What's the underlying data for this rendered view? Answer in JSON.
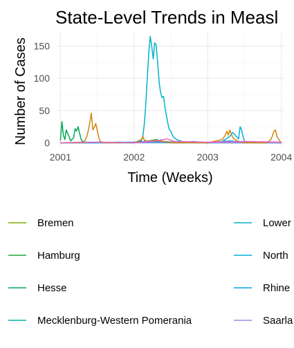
{
  "chart_data": {
    "type": "line",
    "title": "State-Level Trends in Measl",
    "xlabel": "Time (Weeks)",
    "ylabel": "Number of Cases",
    "x_ticks": [
      "2001",
      "2002",
      "2003",
      "2004"
    ],
    "y_ticks": [
      0,
      50,
      100,
      150
    ],
    "xlim": [
      2000.95,
      2004.05
    ],
    "ylim": [
      -6,
      172
    ],
    "grid": true,
    "legend_position": "bottom",
    "series": [
      {
        "name": "Bremen",
        "color": "#7cae00",
        "points": [
          [
            2001.0,
            0
          ],
          [
            2001.5,
            0
          ],
          [
            2002.0,
            1
          ],
          [
            2002.2,
            2
          ],
          [
            2002.4,
            1
          ],
          [
            2003.0,
            0
          ],
          [
            2003.5,
            1
          ],
          [
            2004.0,
            0
          ]
        ]
      },
      {
        "name": "Hamburg",
        "color": "#1fa830",
        "points": [
          [
            2001.0,
            0
          ],
          [
            2001.3,
            1
          ],
          [
            2002.0,
            0
          ],
          [
            2002.2,
            3
          ],
          [
            2002.3,
            5
          ],
          [
            2002.4,
            2
          ],
          [
            2002.6,
            0
          ],
          [
            2003.5,
            1
          ],
          [
            2004.0,
            0
          ]
        ]
      },
      {
        "name": "Hesse",
        "color": "#00a858",
        "points": [
          [
            2001.0,
            3
          ],
          [
            2001.02,
            33
          ],
          [
            2001.04,
            12
          ],
          [
            2001.06,
            5
          ],
          [
            2001.08,
            20
          ],
          [
            2001.1,
            14
          ],
          [
            2001.12,
            9
          ],
          [
            2001.14,
            3
          ],
          [
            2001.18,
            8
          ],
          [
            2001.2,
            22
          ],
          [
            2001.22,
            18
          ],
          [
            2001.24,
            25
          ],
          [
            2001.26,
            15
          ],
          [
            2001.28,
            6
          ],
          [
            2001.3,
            2
          ],
          [
            2001.34,
            1
          ],
          [
            2001.4,
            0
          ],
          [
            2001.8,
            1
          ],
          [
            2002.0,
            0
          ],
          [
            2002.3,
            2
          ],
          [
            2003.0,
            0
          ],
          [
            2004.0,
            0
          ]
        ]
      },
      {
        "name": "Mecklenburg-Western Pomerania",
        "color": "#00b39e",
        "points": [
          [
            2001.0,
            0
          ],
          [
            2002.0,
            0
          ],
          [
            2002.2,
            1
          ],
          [
            2002.5,
            0
          ],
          [
            2003.0,
            0
          ],
          [
            2004.0,
            0
          ]
        ]
      },
      {
        "name": "Lower",
        "color": "#00b3c6",
        "points": [
          [
            2001.0,
            0
          ],
          [
            2001.8,
            0
          ],
          [
            2002.0,
            1
          ],
          [
            2002.1,
            3
          ],
          [
            2002.12,
            10
          ],
          [
            2002.14,
            30
          ],
          [
            2002.16,
            60
          ],
          [
            2002.18,
            100
          ],
          [
            2002.2,
            140
          ],
          [
            2002.22,
            165
          ],
          [
            2002.24,
            150
          ],
          [
            2002.26,
            130
          ],
          [
            2002.28,
            155
          ],
          [
            2002.3,
            152
          ],
          [
            2002.32,
            125
          ],
          [
            2002.34,
            95
          ],
          [
            2002.36,
            78
          ],
          [
            2002.38,
            70
          ],
          [
            2002.4,
            72
          ],
          [
            2002.42,
            55
          ],
          [
            2002.44,
            42
          ],
          [
            2002.46,
            30
          ],
          [
            2002.48,
            20
          ],
          [
            2002.5,
            18
          ],
          [
            2002.52,
            12
          ],
          [
            2002.54,
            8
          ],
          [
            2002.58,
            5
          ],
          [
            2002.62,
            3
          ],
          [
            2002.7,
            1
          ],
          [
            2002.8,
            2
          ],
          [
            2003.0,
            0
          ],
          [
            2003.5,
            1
          ],
          [
            2004.0,
            0
          ]
        ]
      },
      {
        "name": "North",
        "color": "#00aed9",
        "points": [
          [
            2001.0,
            0
          ],
          [
            2002.0,
            0
          ],
          [
            2003.0,
            0
          ],
          [
            2003.2,
            2
          ],
          [
            2003.3,
            10
          ],
          [
            2003.34,
            16
          ],
          [
            2003.38,
            11
          ],
          [
            2003.42,
            6
          ],
          [
            2003.44,
            25
          ],
          [
            2003.46,
            20
          ],
          [
            2003.48,
            10
          ],
          [
            2003.5,
            2
          ],
          [
            2003.6,
            0
          ],
          [
            2004.0,
            0
          ]
        ]
      },
      {
        "name": "Rhine",
        "color": "#00a4e8",
        "points": [
          [
            2001.0,
            0
          ],
          [
            2002.0,
            1
          ],
          [
            2002.3,
            3
          ],
          [
            2002.5,
            1
          ],
          [
            2003.0,
            0
          ],
          [
            2003.3,
            3
          ],
          [
            2003.5,
            1
          ],
          [
            2004.0,
            0
          ]
        ]
      },
      {
        "name": "Saarla",
        "color": "#8f8fe0",
        "points": [
          [
            2001.0,
            0
          ],
          [
            2001.5,
            1
          ],
          [
            2002.0,
            0
          ],
          [
            2002.5,
            1
          ],
          [
            2003.0,
            0
          ],
          [
            2004.0,
            0
          ]
        ]
      },
      {
        "color": "#d2850c",
        "points": [
          [
            2001.0,
            0
          ],
          [
            2001.3,
            0
          ],
          [
            2001.33,
            3
          ],
          [
            2001.36,
            10
          ],
          [
            2001.38,
            20
          ],
          [
            2001.4,
            32
          ],
          [
            2001.42,
            46
          ],
          [
            2001.44,
            20
          ],
          [
            2001.46,
            24
          ],
          [
            2001.48,
            30
          ],
          [
            2001.5,
            20
          ],
          [
            2001.52,
            8
          ],
          [
            2001.54,
            2
          ],
          [
            2001.6,
            0
          ],
          [
            2002.0,
            0
          ],
          [
            2002.1,
            5
          ],
          [
            2002.12,
            10
          ],
          [
            2002.14,
            4
          ],
          [
            2002.2,
            2
          ],
          [
            2002.3,
            4
          ],
          [
            2002.5,
            0
          ],
          [
            2003.0,
            0
          ],
          [
            2003.2,
            5
          ],
          [
            2003.24,
            12
          ],
          [
            2003.26,
            18
          ],
          [
            2003.28,
            12
          ],
          [
            2003.3,
            20
          ],
          [
            2003.34,
            8
          ],
          [
            2003.4,
            3
          ],
          [
            2003.5,
            0
          ],
          [
            2003.8,
            0
          ],
          [
            2003.86,
            5
          ],
          [
            2003.9,
            18
          ],
          [
            2003.92,
            20
          ],
          [
            2003.94,
            10
          ],
          [
            2003.96,
            6
          ],
          [
            2004.0,
            0
          ]
        ]
      },
      {
        "color": "#f062c8",
        "points": [
          [
            2001.0,
            0
          ],
          [
            2001.5,
            1
          ],
          [
            2002.0,
            0
          ],
          [
            2002.3,
            3
          ],
          [
            2002.45,
            6
          ],
          [
            2002.55,
            2
          ],
          [
            2003.0,
            1
          ],
          [
            2003.5,
            2
          ],
          [
            2004.0,
            1
          ]
        ]
      }
    ]
  }
}
